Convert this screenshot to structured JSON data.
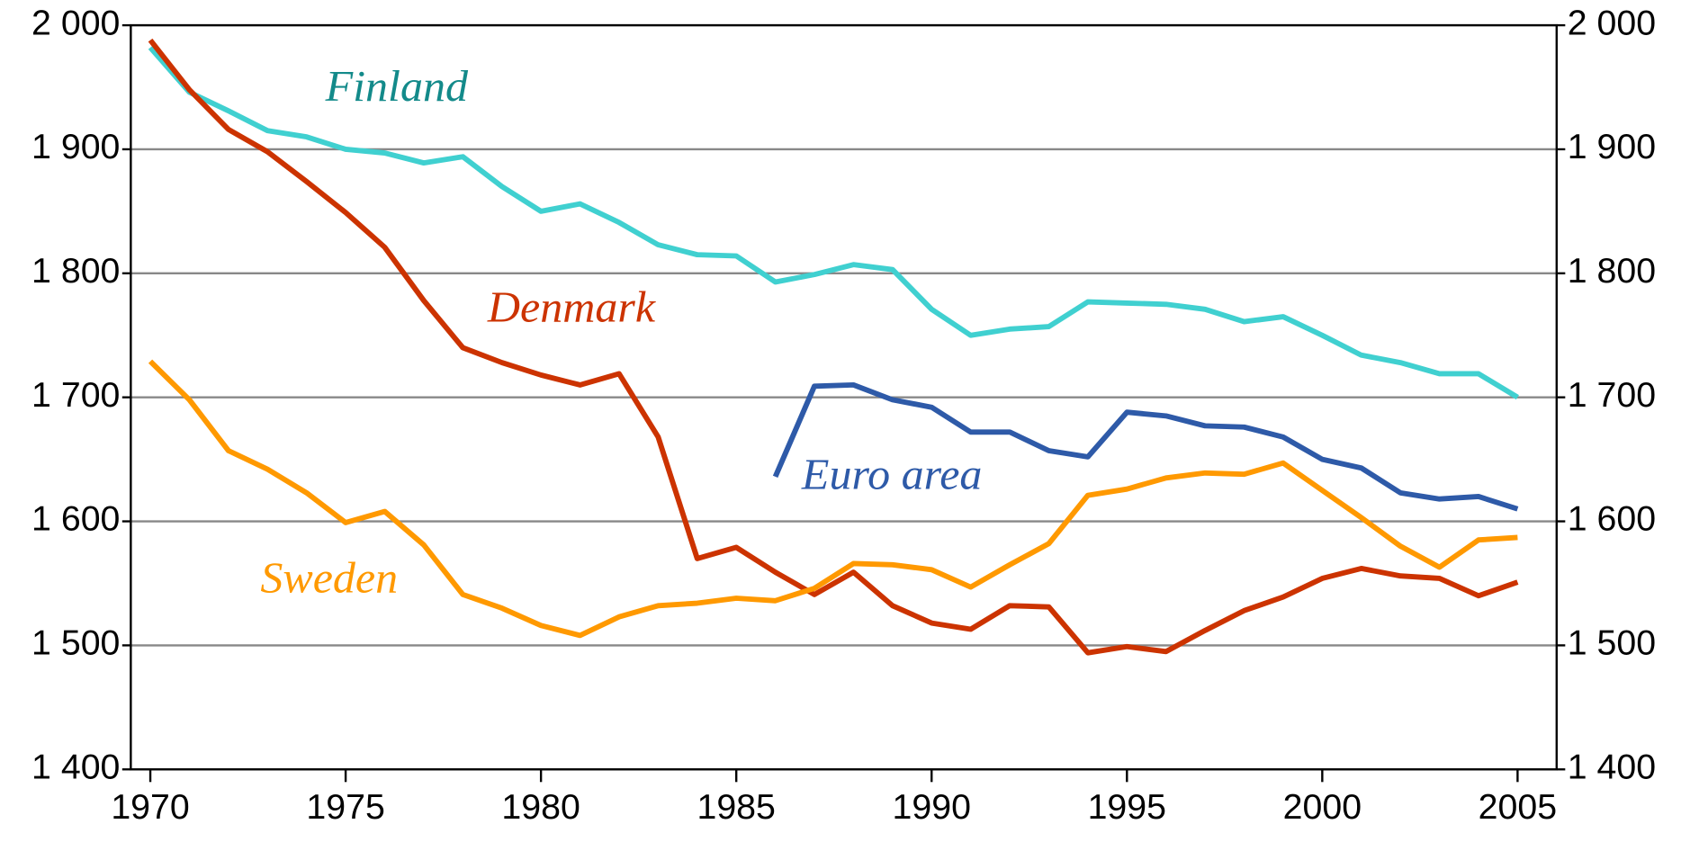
{
  "chart_data": {
    "type": "line",
    "x": [
      1970,
      1971,
      1972,
      1973,
      1974,
      1975,
      1976,
      1977,
      1978,
      1979,
      1980,
      1981,
      1982,
      1983,
      1984,
      1985,
      1986,
      1987,
      1988,
      1989,
      1990,
      1991,
      1992,
      1993,
      1994,
      1995,
      1996,
      1997,
      1998,
      1999,
      2000,
      2001,
      2002,
      2003,
      2004,
      2005
    ],
    "series": [
      {
        "name": "Finland",
        "color": "#40d0d0",
        "values": [
          1982,
          1946,
          1931,
          1915,
          1910,
          1900,
          1897,
          1889,
          1894,
          1870,
          1850,
          1856,
          1841,
          1823,
          1815,
          1814,
          1793,
          1799,
          1807,
          1803,
          1771,
          1750,
          1755,
          1757,
          1777,
          1776,
          1775,
          1771,
          1761,
          1765,
          1750,
          1734,
          1728,
          1719,
          1719,
          1700
        ]
      },
      {
        "name": "Denmark",
        "color": "#cc3300",
        "values": [
          1988,
          1948,
          1916,
          1898,
          1874,
          1849,
          1821,
          1778,
          1740,
          1728,
          1718,
          1710,
          1719,
          1668,
          1570,
          1579,
          1559,
          1541,
          1559,
          1532,
          1518,
          1513,
          1532,
          1531,
          1494,
          1499,
          1495,
          1512,
          1528,
          1539,
          1554,
          1562,
          1556,
          1554,
          1540,
          1551
        ]
      },
      {
        "name": "Sweden",
        "color": "#ff9900",
        "values": [
          1729,
          1698,
          1657,
          1642,
          1623,
          1599,
          1608,
          1581,
          1541,
          1530,
          1516,
          1508,
          1523,
          1532,
          1534,
          1538,
          1536,
          1546,
          1566,
          1565,
          1561,
          1547,
          1565,
          1582,
          1621,
          1626,
          1635,
          1639,
          1638,
          1647,
          1625,
          1603,
          1580,
          1563,
          1585,
          1587
        ]
      },
      {
        "name": "Euro area",
        "color": "#2e5aa8",
        "values": [
          null,
          null,
          null,
          null,
          null,
          null,
          null,
          null,
          null,
          null,
          null,
          null,
          null,
          null,
          null,
          null,
          1636,
          1709,
          1710,
          1698,
          1692,
          1672,
          1672,
          1657,
          1652,
          1688,
          1685,
          1677,
          1676,
          1668,
          1650,
          1643,
          1623,
          1618,
          1620,
          1610
        ]
      }
    ],
    "xlim": [
      1969.5,
      2006
    ],
    "xticks": [
      1970,
      1975,
      1980,
      1985,
      1990,
      1995,
      2000,
      2005
    ],
    "ylim": [
      1400,
      2000
    ],
    "yticks": [
      {
        "value": 1400,
        "label": "1 400"
      },
      {
        "value": 1500,
        "label": "1 500"
      },
      {
        "value": 1600,
        "label": "1 600"
      },
      {
        "value": 1700,
        "label": "1 700"
      },
      {
        "value": 1800,
        "label": "1 800"
      },
      {
        "value": 1900,
        "label": "1 900"
      },
      {
        "value": 2000,
        "label": "2 000"
      }
    ],
    "y2lim": [
      1400,
      2000
    ],
    "y2ticks": [
      {
        "value": 1400,
        "label": "1 400"
      },
      {
        "value": 1500,
        "label": "1 500"
      },
      {
        "value": 1600,
        "label": "1 600"
      },
      {
        "value": 1700,
        "label": "1 700"
      },
      {
        "value": 1800,
        "label": "1 800"
      },
      {
        "value": 1900,
        "label": "1 900"
      },
      {
        "value": 2000,
        "label": "2 000"
      }
    ],
    "grid": true
  }
}
